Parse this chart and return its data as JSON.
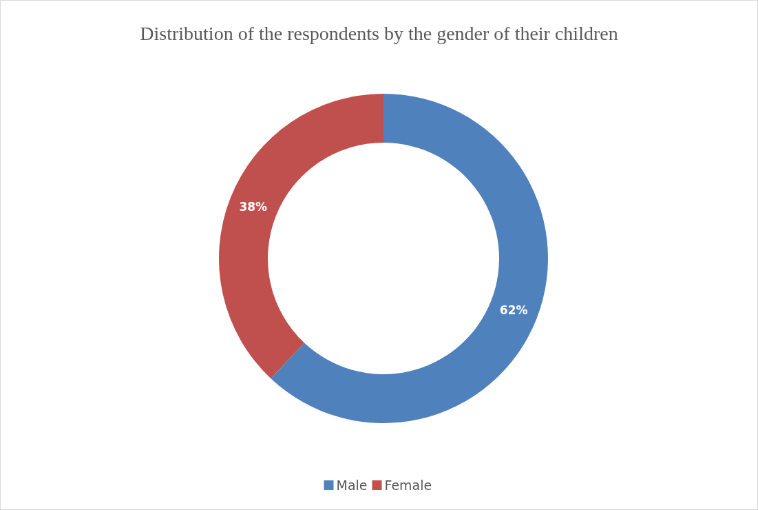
{
  "chart_data": {
    "type": "donut",
    "title": "Distribution of the respondents by the gender of their children",
    "categories": [
      "Male",
      "Female"
    ],
    "values": [
      62,
      38
    ],
    "colors": [
      "#4f81bd",
      "#c0504d"
    ],
    "value_labels": [
      "62%",
      "38%"
    ],
    "legend": "bottom"
  }
}
